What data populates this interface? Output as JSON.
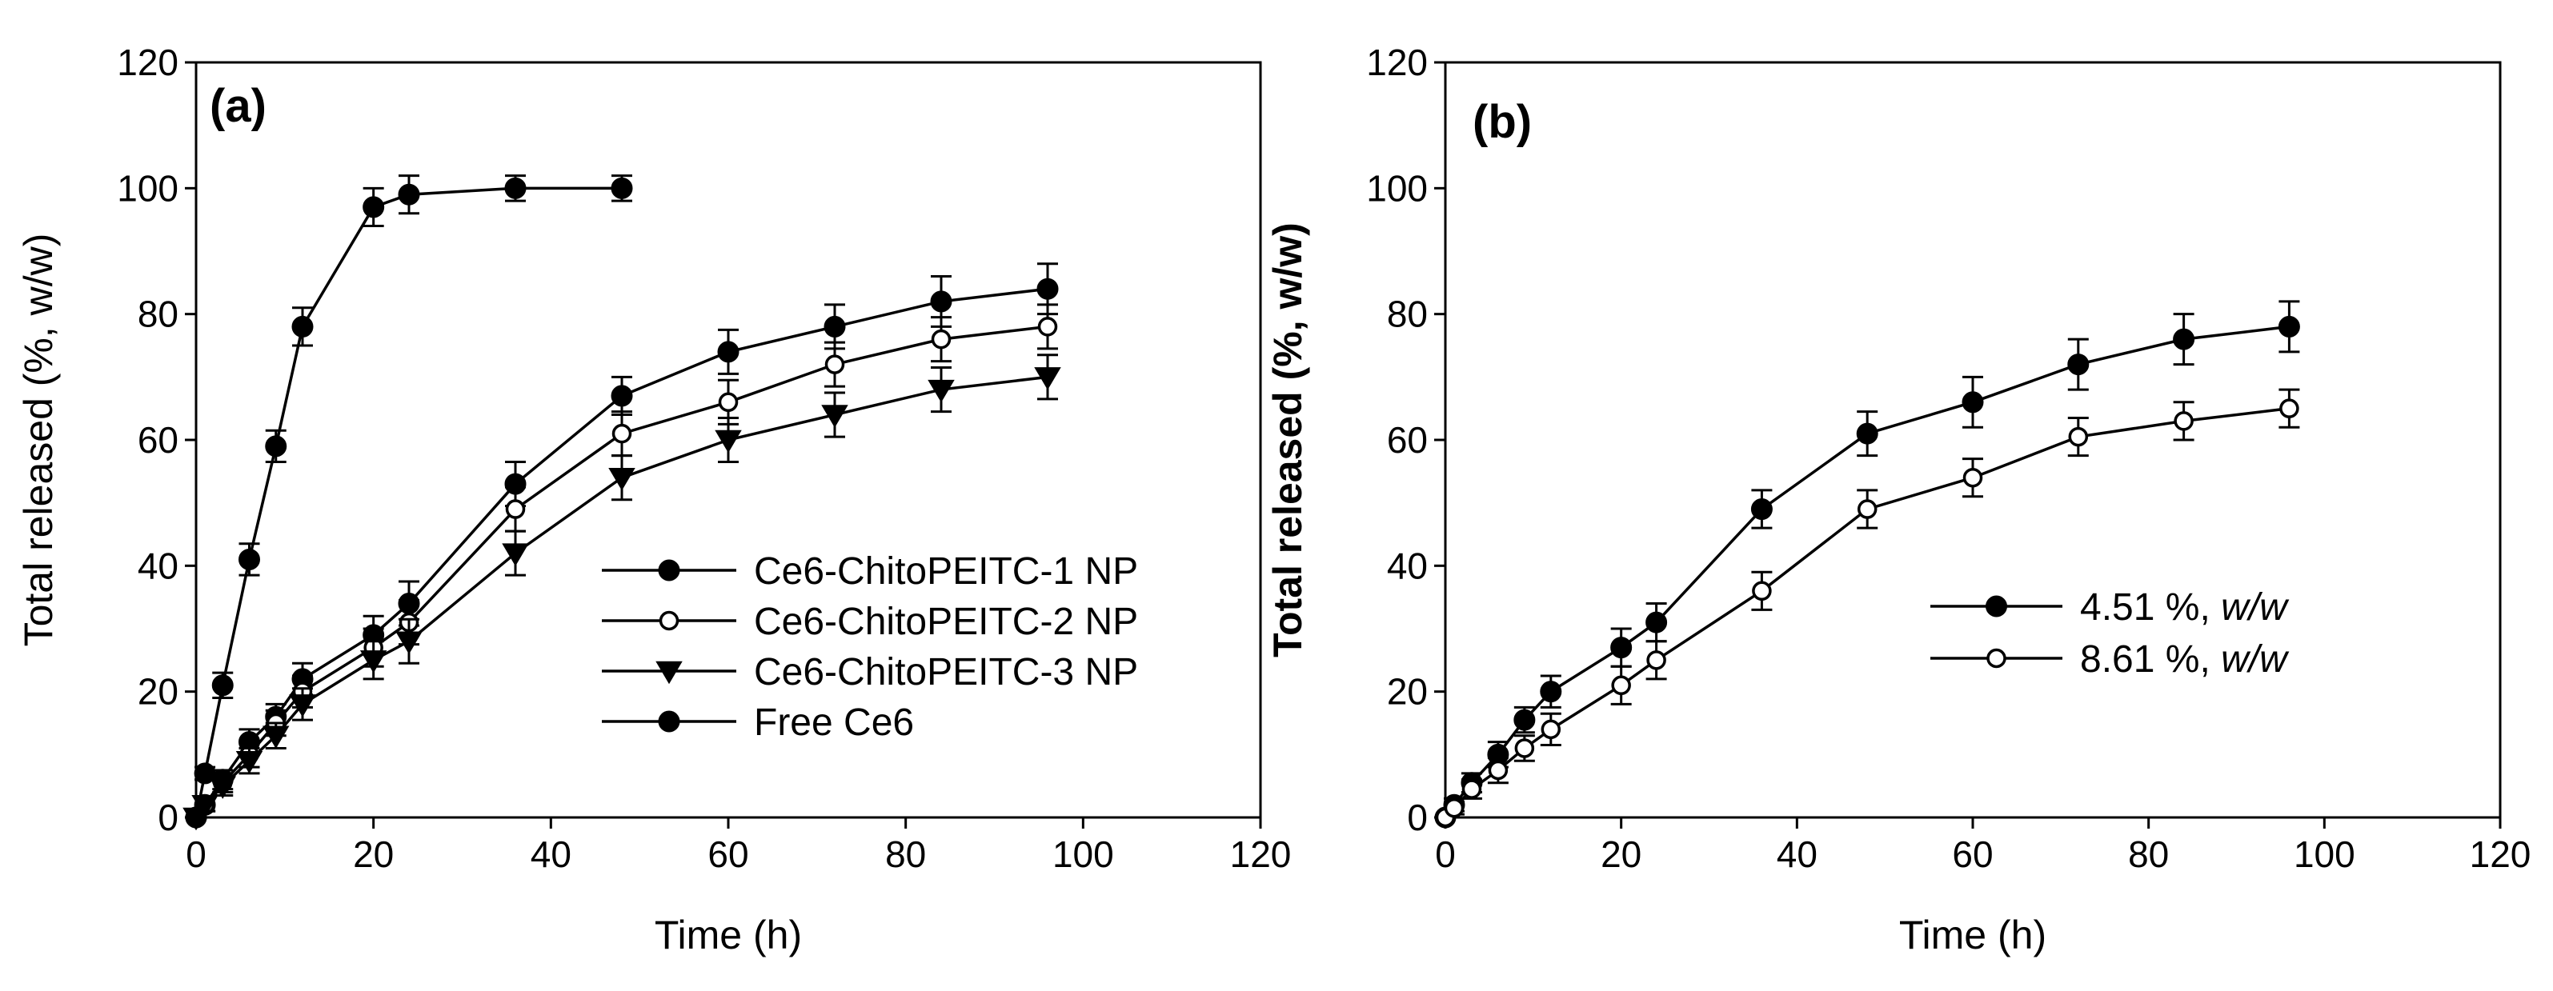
{
  "chart_data": [
    {
      "panel_label": "(a)",
      "type": "line",
      "xlabel": "Time (h)",
      "ylabel": "Total released (%, w/w)",
      "xlim": [
        0,
        120
      ],
      "ylim": [
        0,
        120
      ],
      "xticks": [
        "0",
        "20",
        "40",
        "60",
        "80",
        "100",
        "120"
      ],
      "yticks": [
        "0",
        "20",
        "40",
        "60",
        "80",
        "100",
        "120"
      ],
      "legend_position": "center-right",
      "series": [
        {
          "name": "Ce6-ChitoPEITC-1 NP",
          "marker": "filled-circle",
          "x": [
            0,
            1,
            3,
            6,
            9,
            12,
            20,
            24,
            36,
            48,
            60,
            72,
            84,
            96
          ],
          "y": [
            0,
            2,
            6,
            12,
            16,
            22,
            29,
            34,
            53,
            67,
            74,
            78,
            82,
            84
          ],
          "err": [
            0,
            1,
            1.5,
            2,
            2,
            2.5,
            3,
            3.5,
            3.5,
            3,
            3.5,
            3.5,
            4,
            4
          ]
        },
        {
          "name": "Ce6-ChitoPEITC-2 NP",
          "marker": "open-circle",
          "x": [
            0,
            1,
            3,
            6,
            9,
            12,
            20,
            24,
            36,
            48,
            60,
            72,
            84,
            96
          ],
          "y": [
            0,
            2,
            5.5,
            10,
            15,
            20,
            27,
            31,
            49,
            61,
            66,
            72,
            76,
            78
          ],
          "err": [
            0,
            1,
            1.5,
            2,
            2,
            2.5,
            3,
            3.5,
            3.5,
            3.5,
            3.5,
            3.5,
            3.5,
            3.5
          ]
        },
        {
          "name": "Ce6-ChitoPEITC-3 NP",
          "marker": "filled-triangle-down",
          "x": [
            0,
            1,
            3,
            6,
            9,
            12,
            20,
            24,
            36,
            48,
            60,
            72,
            84,
            96
          ],
          "y": [
            0,
            2,
            5,
            9,
            13,
            18,
            25,
            28,
            42,
            54,
            60,
            64,
            68,
            70
          ],
          "err": [
            0,
            1,
            1.5,
            2,
            2,
            2.5,
            3,
            3.5,
            3.5,
            3.5,
            3.5,
            3.5,
            3.5,
            3.5
          ]
        },
        {
          "name": "Free Ce6",
          "marker": "filled-circle",
          "x": [
            0,
            1,
            3,
            6,
            9,
            12,
            20,
            24,
            36,
            48
          ],
          "y": [
            0,
            7,
            21,
            41,
            59,
            78,
            97,
            99,
            100,
            100
          ],
          "err": [
            0,
            1,
            2,
            2.5,
            2.5,
            3,
            3,
            3,
            2,
            2
          ]
        }
      ]
    },
    {
      "panel_label": "(b)",
      "type": "line",
      "xlabel": "Time (h)",
      "ylabel": "Total released (%, w/w)",
      "xlim": [
        0,
        120
      ],
      "ylim": [
        0,
        120
      ],
      "xticks": [
        "0",
        "20",
        "40",
        "60",
        "80",
        "100",
        "120"
      ],
      "yticks": [
        "0",
        "20",
        "40",
        "60",
        "80",
        "100",
        "120"
      ],
      "legend_position": "center-right",
      "series": [
        {
          "name": "4.51 %, w/w",
          "value_text": "4.51 %, ",
          "unit_text": "w/w",
          "marker": "filled-circle",
          "x": [
            0,
            1,
            3,
            6,
            9,
            12,
            20,
            24,
            36,
            48,
            60,
            72,
            84,
            96
          ],
          "y": [
            0,
            2,
            5.5,
            10,
            15.5,
            20,
            27,
            31,
            49,
            61,
            66,
            72,
            76,
            78
          ],
          "err": [
            0,
            1,
            1.5,
            2,
            2,
            2.5,
            3,
            3,
            3,
            3.5,
            4,
            4,
            4,
            4
          ]
        },
        {
          "name": "8.61 %, w/w",
          "value_text": "8.61 %, ",
          "unit_text": "w/w",
          "marker": "open-circle",
          "x": [
            0,
            1,
            3,
            6,
            9,
            12,
            20,
            24,
            36,
            48,
            60,
            72,
            84,
            96
          ],
          "y": [
            0,
            1.5,
            4.5,
            7.5,
            11,
            14,
            21,
            25,
            36,
            49,
            54,
            60.5,
            63,
            65
          ],
          "err": [
            0,
            1,
            1.5,
            2,
            2,
            2.5,
            3,
            3,
            3,
            3,
            3,
            3,
            3,
            3
          ]
        }
      ]
    }
  ]
}
